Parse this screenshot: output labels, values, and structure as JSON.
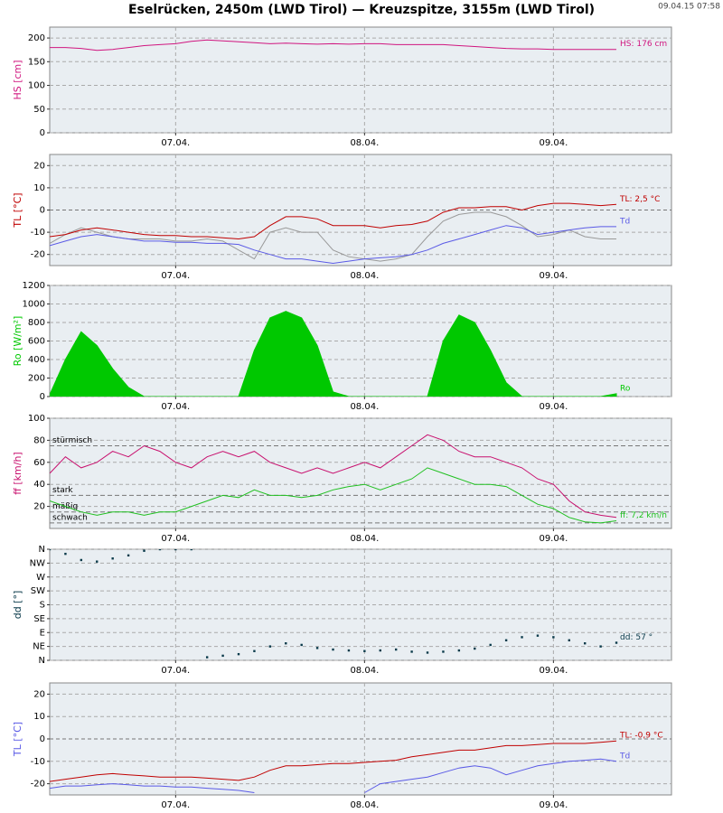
{
  "page": {
    "title": "Eselrücken, 2450m (LWD Tirol) — Kreuzspitze, 3155m (LWD Tirol)",
    "timestamp": "09.04.15 07:58"
  },
  "chart_data": [
    {
      "type": "line",
      "ylabel": "HS [cm]",
      "ylim": [
        0,
        223
      ],
      "yticks": [
        0,
        50,
        100,
        150,
        200
      ],
      "xlim": [
        8,
        87
      ],
      "xticks": [
        {
          "value": 24,
          "label": "07.04."
        },
        {
          "value": 48,
          "label": "08.04."
        },
        {
          "value": 72,
          "label": "09.04."
        }
      ],
      "x": [
        8,
        10,
        12,
        14,
        16,
        18,
        20,
        22,
        24,
        26,
        28,
        30,
        32,
        34,
        36,
        38,
        40,
        42,
        44,
        46,
        48,
        50,
        52,
        54,
        56,
        58,
        60,
        62,
        64,
        66,
        68,
        70,
        72,
        74,
        76,
        78,
        80
      ],
      "series": [
        {
          "name": "HS: 176 cm",
          "color": "#d0157f",
          "values": [
            180,
            180,
            178,
            174,
            176,
            180,
            184,
            186,
            188,
            193,
            196,
            194,
            192,
            190,
            188,
            189,
            188,
            187,
            188,
            187,
            188,
            188,
            186,
            186,
            186,
            186,
            184,
            182,
            180,
            178,
            177,
            177,
            176,
            176,
            176,
            176,
            176
          ]
        }
      ]
    },
    {
      "type": "line",
      "ylabel": "TL [°C]",
      "ylim": [
        -25,
        25
      ],
      "yticks": [
        -20,
        -10,
        0,
        10,
        20
      ],
      "xlim": [
        8,
        87
      ],
      "xticks": [
        {
          "value": 24,
          "label": "07.04."
        },
        {
          "value": 48,
          "label": "08.04."
        },
        {
          "value": 72,
          "label": "09.04."
        }
      ],
      "x": [
        8,
        10,
        12,
        14,
        16,
        18,
        20,
        22,
        24,
        26,
        28,
        30,
        32,
        34,
        36,
        38,
        40,
        42,
        44,
        46,
        48,
        50,
        52,
        54,
        56,
        58,
        60,
        62,
        64,
        66,
        68,
        70,
        72,
        74,
        76,
        78,
        80
      ],
      "series": [
        {
          "color": "#999999",
          "values": [
            -15,
            -11,
            -8,
            -10,
            -12,
            -13,
            -13,
            -13,
            -14,
            -14,
            -13,
            -14,
            -18,
            -22,
            -10,
            -8,
            -10,
            -10,
            -18,
            -21,
            -22,
            -23,
            -22,
            -20,
            -12,
            -5,
            -2,
            -1,
            -1,
            -3,
            -7,
            -12,
            -11,
            -9,
            -12,
            -13,
            -13
          ]
        },
        {
          "name": "Td",
          "color": "#5a5ae6",
          "values": [
            -16,
            -14,
            -12,
            -11,
            -12,
            -13,
            -14,
            -14,
            -14.5,
            -14.5,
            -15,
            -15,
            -15.5,
            -18,
            -20,
            -22,
            -22,
            -23,
            -24,
            -23,
            -22,
            -21.5,
            -21,
            -20,
            -18,
            -15,
            -13,
            -11,
            -9,
            -7,
            -8,
            -11,
            -10,
            -9,
            -8,
            -7.5,
            -7.5
          ]
        },
        {
          "name": "TL: 2,5 °C",
          "color": "#c00000",
          "values": [
            -12,
            -11,
            -9,
            -8,
            -9,
            -10,
            -11,
            -11.5,
            -11.5,
            -12,
            -12,
            -12.5,
            -13,
            -12,
            -7,
            -3,
            -3,
            -4,
            -7,
            -7,
            -7,
            -8,
            -7,
            -6.5,
            -5,
            -1,
            1,
            1,
            1.5,
            1.5,
            0,
            2,
            3,
            3,
            2.5,
            2,
            2.5
          ]
        }
      ]
    },
    {
      "type": "area",
      "ylabel": "Ro [W/m²]",
      "ylim": [
        0,
        1200
      ],
      "yticks": [
        0,
        200,
        400,
        600,
        800,
        1000,
        1200
      ],
      "xlim": [
        8,
        87
      ],
      "xticks": [
        {
          "value": 24,
          "label": "07.04."
        },
        {
          "value": 48,
          "label": "08.04."
        },
        {
          "value": 72,
          "label": "09.04."
        }
      ],
      "x": [
        8,
        10,
        12,
        14,
        16,
        18,
        20,
        22,
        24,
        26,
        28,
        30,
        32,
        34,
        36,
        38,
        40,
        42,
        44,
        46,
        48,
        50,
        52,
        54,
        56,
        58,
        60,
        62,
        64,
        66,
        68,
        70,
        72,
        74,
        76,
        78,
        80
      ],
      "series": [
        {
          "name": "Ro",
          "color": "#00c800",
          "values": [
            20,
            400,
            700,
            550,
            300,
            100,
            0,
            0,
            0,
            0,
            0,
            0,
            0,
            500,
            850,
            920,
            850,
            550,
            50,
            0,
            0,
            0,
            0,
            0,
            0,
            600,
            880,
            800,
            500,
            150,
            0,
            0,
            0,
            0,
            0,
            0,
            30
          ]
        }
      ]
    },
    {
      "type": "line",
      "ylabel": "ff [km/h]",
      "ylim": [
        0,
        100
      ],
      "yticks": [
        20,
        40,
        60,
        80,
        100
      ],
      "xlim": [
        8,
        87
      ],
      "xticks": [
        {
          "value": 24,
          "label": "07.04."
        },
        {
          "value": 48,
          "label": "08.04."
        },
        {
          "value": 72,
          "label": "09.04."
        }
      ],
      "annotations": [
        {
          "text": "stürmisch",
          "y": 75
        },
        {
          "text": "stark",
          "y": 30
        },
        {
          "text": "mäßig",
          "y": 15
        },
        {
          "text": "schwach",
          "y": 5
        }
      ],
      "x": [
        8,
        10,
        12,
        14,
        16,
        18,
        20,
        22,
        24,
        26,
        28,
        30,
        32,
        34,
        36,
        38,
        40,
        42,
        44,
        46,
        48,
        50,
        52,
        54,
        56,
        58,
        60,
        62,
        64,
        66,
        68,
        70,
        72,
        74,
        76,
        78,
        80
      ],
      "series": [
        {
          "color": "#c8106e",
          "values": [
            50,
            65,
            55,
            60,
            70,
            65,
            75,
            70,
            60,
            55,
            65,
            70,
            65,
            70,
            60,
            55,
            50,
            55,
            50,
            55,
            60,
            55,
            65,
            75,
            85,
            80,
            70,
            65,
            65,
            60,
            55,
            45,
            40,
            25,
            15,
            12,
            10
          ]
        },
        {
          "name": "ff: 7,2 km/h",
          "color": "#20c020",
          "values": [
            25,
            20,
            15,
            12,
            15,
            15,
            12,
            15,
            15,
            20,
            25,
            30,
            28,
            35,
            30,
            30,
            28,
            30,
            35,
            38,
            40,
            35,
            40,
            45,
            55,
            50,
            45,
            40,
            40,
            38,
            30,
            22,
            18,
            10,
            6,
            5,
            7
          ]
        }
      ]
    },
    {
      "type": "scatter",
      "ylabel": "dd [°]",
      "ylim": [
        0,
        360
      ],
      "yticks": [
        {
          "value": 0,
          "label": "N"
        },
        {
          "value": 45,
          "label": "NE"
        },
        {
          "value": 90,
          "label": "E"
        },
        {
          "value": 135,
          "label": "SE"
        },
        {
          "value": 180,
          "label": "S"
        },
        {
          "value": 225,
          "label": "SW"
        },
        {
          "value": 270,
          "label": "W"
        },
        {
          "value": 315,
          "label": "NW"
        },
        {
          "value": 360,
          "label": "N"
        }
      ],
      "xlim": [
        8,
        87
      ],
      "xticks": [
        {
          "value": 24,
          "label": "07.04."
        },
        {
          "value": 48,
          "label": "08.04."
        },
        {
          "value": 72,
          "label": "09.04."
        }
      ],
      "x": [
        8,
        10,
        12,
        14,
        16,
        18,
        20,
        22,
        24,
        26,
        28,
        30,
        32,
        34,
        36,
        38,
        40,
        42,
        44,
        46,
        48,
        50,
        52,
        54,
        56,
        58,
        60,
        62,
        64,
        66,
        68,
        70,
        72,
        74,
        76,
        78,
        80
      ],
      "series": [
        {
          "name": "dd: 57 °",
          "color": "#0a3a4a",
          "values": [
            360,
            345,
            325,
            320,
            330,
            340,
            355,
            360,
            360,
            360,
            10,
            15,
            20,
            30,
            45,
            55,
            50,
            40,
            35,
            32,
            30,
            32,
            35,
            28,
            25,
            28,
            32,
            38,
            50,
            65,
            75,
            80,
            75,
            65,
            55,
            45,
            57
          ]
        }
      ]
    },
    {
      "type": "line",
      "ylabel": "TL [°C]",
      "ylim": [
        -25,
        25
      ],
      "yticks": [
        -20,
        -10,
        0,
        10,
        20
      ],
      "xlim": [
        8,
        87
      ],
      "xticks": [
        {
          "value": 24,
          "label": "07.04."
        },
        {
          "value": 48,
          "label": "08.04."
        },
        {
          "value": 72,
          "label": "09.04."
        }
      ],
      "x": [
        8,
        10,
        12,
        14,
        16,
        18,
        20,
        22,
        24,
        26,
        28,
        30,
        32,
        34,
        36,
        38,
        40,
        42,
        44,
        46,
        48,
        50,
        52,
        54,
        56,
        58,
        60,
        62,
        64,
        66,
        68,
        70,
        72,
        74,
        76,
        78,
        80
      ],
      "series": [
        {
          "name": "Td",
          "color": "#5a5ae6",
          "values": [
            -22,
            -21,
            -21,
            -20.5,
            -20,
            -20.5,
            -21,
            -21,
            -21.5,
            -21.5,
            -22,
            -22.5,
            -23,
            -24,
            null,
            null,
            null,
            null,
            null,
            null,
            -24,
            -20,
            -19,
            -18,
            -17,
            -15,
            -13,
            -12,
            -13,
            -16,
            -14,
            -12,
            -11,
            -10,
            -9.5,
            -9,
            -10
          ]
        },
        {
          "name": "TL: -0,9 °C",
          "color": "#c00000",
          "values": [
            -19,
            -18,
            -17,
            -16,
            -15.5,
            -16,
            -16.5,
            -17,
            -17,
            -17,
            -17.5,
            -18,
            -18.5,
            -17,
            -14,
            -12,
            -12,
            -11.5,
            -11,
            -11,
            -10.5,
            -10,
            -9.5,
            -8,
            -7,
            -6,
            -5,
            -5,
            -4,
            -3,
            -3,
            -2.5,
            -2,
            -2,
            -2,
            -1.5,
            -0.9
          ]
        }
      ]
    }
  ]
}
